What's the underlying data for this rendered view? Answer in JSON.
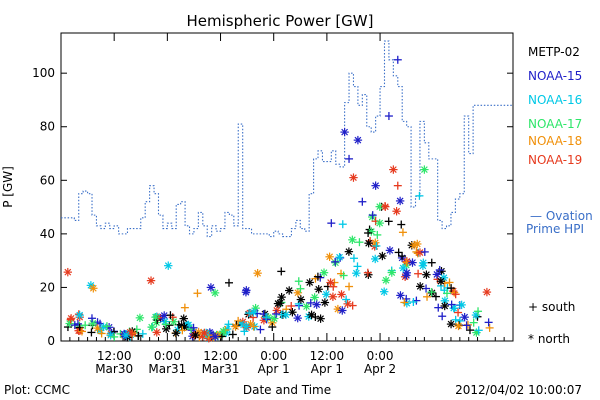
{
  "chart_data": {
    "type": "scatter",
    "title": "Hemispheric Power [GW]",
    "xlabel": "Date and Time",
    "ylabel": "P [GW]",
    "xlim": [
      0,
      102
    ],
    "ylim": [
      0,
      115
    ],
    "yticks": [
      0,
      20,
      40,
      60,
      80,
      100
    ],
    "xticks": [
      {
        "x": 12,
        "line1": "12:00",
        "line2": "Mar30"
      },
      {
        "x": 24,
        "line1": "0:00",
        "line2": "Mar31"
      },
      {
        "x": 36,
        "line1": "12:00",
        "line2": "Mar31"
      },
      {
        "x": 48,
        "line1": "0:00",
        "line2": "Apr 1"
      },
      {
        "x": 60,
        "line1": "12:00",
        "line2": "Apr 1"
      },
      {
        "x": 72,
        "line1": "0:00",
        "line2": "Apr 2"
      }
    ],
    "legend_placement": "right",
    "series": [
      {
        "name": "METP-02",
        "color": "#000000",
        "values": []
      },
      {
        "name": "NOAA-15",
        "color": "#1f1fc8",
        "values": []
      },
      {
        "name": "NOAA-16",
        "color": "#00c8e6",
        "values": []
      },
      {
        "name": "NOAA-17",
        "color": "#2ee66a",
        "values": []
      },
      {
        "name": "NOAA-18",
        "color": "#f0900a",
        "values": []
      },
      {
        "name": "NOAA-19",
        "color": "#e63a1e",
        "values": []
      }
    ],
    "ovation": {
      "label_line1": "— Ovation",
      "label_line2": "Prime HPI",
      "color": "#3a6fc8",
      "points": [
        [
          0,
          46
        ],
        [
          3,
          45
        ],
        [
          4,
          55
        ],
        [
          5,
          56
        ],
        [
          6,
          55
        ],
        [
          7,
          47
        ],
        [
          8,
          43
        ],
        [
          9,
          42
        ],
        [
          10,
          44
        ],
        [
          11,
          42
        ],
        [
          12,
          43
        ],
        [
          13,
          40
        ],
        [
          14,
          40
        ],
        [
          15,
          42
        ],
        [
          16,
          42
        ],
        [
          17,
          42
        ],
        [
          18,
          46
        ],
        [
          19,
          52
        ],
        [
          20,
          58
        ],
        [
          21,
          55
        ],
        [
          22,
          47
        ],
        [
          23,
          42
        ],
        [
          24,
          44
        ],
        [
          25,
          42
        ],
        [
          26,
          51
        ],
        [
          27,
          52
        ],
        [
          28,
          43
        ],
        [
          29,
          40
        ],
        [
          30,
          42
        ],
        [
          31,
          48
        ],
        [
          32,
          43
        ],
        [
          33,
          39
        ],
        [
          34,
          43
        ],
        [
          35,
          41
        ],
        [
          36,
          42
        ],
        [
          37,
          48
        ],
        [
          38,
          47
        ],
        [
          39,
          43
        ],
        [
          40,
          81
        ],
        [
          41,
          42
        ],
        [
          43,
          40
        ],
        [
          47,
          39
        ],
        [
          48,
          41
        ],
        [
          49,
          40
        ],
        [
          50,
          39
        ],
        [
          52,
          42
        ],
        [
          53,
          45
        ],
        [
          54,
          42
        ],
        [
          55,
          41
        ],
        [
          56,
          55
        ],
        [
          57,
          68
        ],
        [
          58,
          71
        ],
        [
          59,
          67
        ],
        [
          60,
          67
        ],
        [
          61,
          71
        ],
        [
          62,
          66
        ],
        [
          63,
          65
        ],
        [
          64,
          89
        ],
        [
          65,
          100
        ],
        [
          66,
          95
        ],
        [
          67,
          88
        ],
        [
          68,
          92
        ],
        [
          69,
          80
        ],
        [
          70,
          78
        ],
        [
          71,
          84
        ],
        [
          72,
          95
        ],
        [
          73,
          112
        ],
        [
          74,
          105
        ],
        [
          75,
          99
        ],
        [
          76,
          95
        ],
        [
          77,
          82
        ],
        [
          78,
          80
        ],
        [
          79,
          50
        ],
        [
          80,
          54
        ],
        [
          81,
          82
        ],
        [
          82,
          74
        ],
        [
          83,
          68
        ],
        [
          84,
          68
        ],
        [
          85,
          45
        ],
        [
          86,
          42
        ],
        [
          87,
          43
        ],
        [
          88,
          48
        ],
        [
          89,
          53
        ],
        [
          90,
          55
        ],
        [
          91,
          84
        ],
        [
          92,
          70
        ],
        [
          93,
          88
        ]
      ]
    }
  },
  "symbols": {
    "south_label": "+ south",
    "north_label": "* north"
  },
  "footer": {
    "plot_credit": "Plot: CCMC",
    "timestamp": "2012/04/02 10:00:07"
  }
}
